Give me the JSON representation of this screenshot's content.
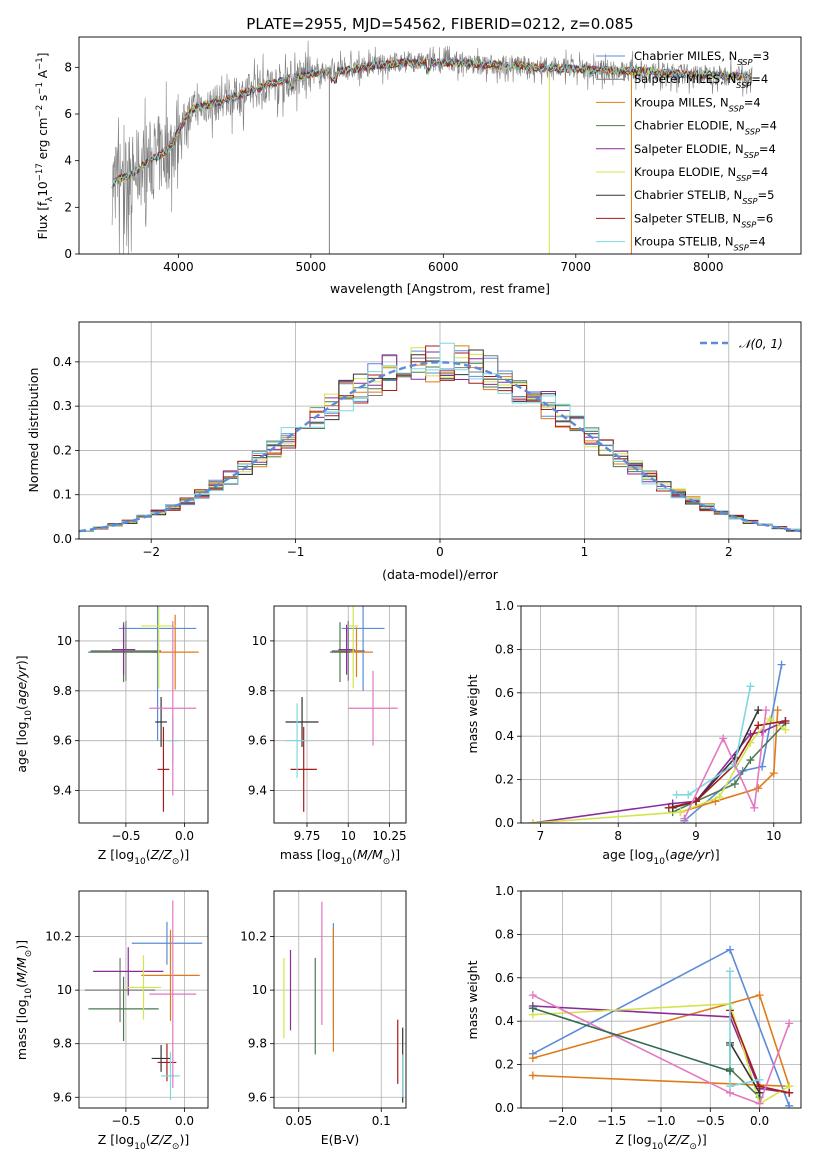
{
  "chart_data": [
    {
      "id": "spectrum",
      "type": "line",
      "title": "PLATE=2955, MJD=54562, FIBERID=0212, z=0.085",
      "xlabel": "wavelength [Angstrom, rest frame]",
      "ylabel": "Flux [f_λ 10^-17 erg cm^-2 s^-1 A^-1]",
      "xlim": [
        3250,
        8700
      ],
      "ylim": [
        0,
        9.3
      ],
      "xticks": [
        4000,
        5000,
        6000,
        7000,
        8000
      ],
      "yticks": [
        0,
        2,
        4,
        6,
        8
      ],
      "legend_position": "top-right",
      "grid": false,
      "series": [
        {
          "name": "Chabrier MILES, N_SSP=3",
          "color": "#5b8bd9"
        },
        {
          "name": "Salpeter MILES, N_SSP=4",
          "color": "#7a7a7a"
        },
        {
          "name": "Kroupa MILES, N_SSP=4",
          "color": "#e07b1a"
        },
        {
          "name": "Chabrier ELODIE, N_SSP=4",
          "color": "#4f7a4f"
        },
        {
          "name": "Salpeter ELODIE, N_SSP=4",
          "color": "#8b2c9b"
        },
        {
          "name": "Kroupa ELODIE, N_SSP=4",
          "color": "#d4e44a"
        },
        {
          "name": "Chabrier STELIB, N_SSP=5",
          "color": "#333333"
        },
        {
          "name": "Salpeter STELIB, N_SSP=6",
          "color": "#a51c1c"
        },
        {
          "name": "Kroupa STELIB, N_SSP=4",
          "color": "#7fd8df"
        }
      ],
      "continuum": {
        "x": [
          3500,
          3550,
          3650,
          3750,
          3850,
          3950,
          4000,
          4100,
          4300,
          4500,
          4700,
          4900,
          5100,
          5300,
          5500,
          5700,
          5900,
          6100,
          6300,
          6500,
          6700,
          6900,
          7100,
          7300,
          7500,
          7700,
          7900,
          8100,
          8300
        ],
        "y": [
          3.0,
          3.2,
          3.4,
          3.9,
          4.2,
          4.6,
          5.3,
          6.2,
          6.5,
          6.9,
          7.3,
          7.6,
          7.8,
          7.9,
          8.1,
          8.2,
          8.2,
          8.2,
          8.1,
          8.1,
          8.0,
          7.95,
          7.9,
          7.85,
          7.85,
          7.75,
          7.7,
          7.65,
          7.6
        ]
      }
    },
    {
      "id": "residuals",
      "type": "line",
      "xlabel": "(data-model)/error",
      "ylabel": "Normed distribution",
      "xlim": [
        -2.5,
        2.5
      ],
      "ylim": [
        0,
        0.49
      ],
      "xticks": [
        -2,
        -1,
        0,
        1,
        2
      ],
      "yticks": [
        0.0,
        0.1,
        0.2,
        0.3,
        0.4
      ],
      "legend": "N(0,1)",
      "legend_label": "𝒩(0, 1)",
      "legend_position": "top-right",
      "grid": true,
      "bin_width": 0.1
    },
    {
      "id": "age-vs-z",
      "type": "scatter",
      "xlabel": "Z [log10(Z/Z⊙)]",
      "ylabel": "age [log10(age/yr)]",
      "xlim": [
        -0.9,
        0.2
      ],
      "ylim": [
        9.27,
        10.14
      ],
      "xticks": [
        -0.5,
        0.0
      ],
      "yticks": [
        9.4,
        9.6,
        9.8,
        10.0
      ],
      "grid": true,
      "points": [
        {
          "x": -0.23,
          "y": 10.05,
          "xerr": 0.33,
          "yerr": 0.45,
          "color": "#5b8bd9"
        },
        {
          "x": -0.5,
          "y": 9.96,
          "xerr": 0.3,
          "yerr": 0.12,
          "color": "#7a7a7a"
        },
        {
          "x": -0.08,
          "y": 9.955,
          "xerr": 0.2,
          "yerr": 0.15,
          "color": "#e07b1a"
        },
        {
          "x": -0.52,
          "y": 9.955,
          "xerr": 0.3,
          "yerr": 0.12,
          "color": "#4f7a4f"
        },
        {
          "x": -0.52,
          "y": 9.965,
          "xerr": 0.1,
          "yerr": 0.1,
          "color": "#8b2c9b"
        },
        {
          "x": -0.22,
          "y": 10.06,
          "xerr": 0.15,
          "yerr": 0.25,
          "color": "#d4e44a"
        },
        {
          "x": -0.2,
          "y": 9.675,
          "xerr": 0.05,
          "yerr": 0.1,
          "color": "#333333"
        },
        {
          "x": -0.18,
          "y": 9.485,
          "xerr": 0.05,
          "yerr": 0.17,
          "color": "#a51c1c"
        },
        {
          "x": -0.1,
          "y": 9.6,
          "xerr": 0.05,
          "yerr": 0.1,
          "color": "#7fd8df"
        },
        {
          "x": -0.1,
          "y": 9.73,
          "xerr": 0.2,
          "yerr": 0.35,
          "color": "#e377c2"
        }
      ]
    },
    {
      "id": "age-vs-mass",
      "type": "scatter",
      "xlabel": "mass [log10(M/M⊙)]",
      "ylabel": "",
      "xlim": [
        9.55,
        10.35
      ],
      "ylim": [
        9.27,
        10.14
      ],
      "xticks": [
        9.75,
        10.0,
        10.25
      ],
      "yticks": [
        9.4,
        9.6,
        9.8,
        10.0
      ],
      "grid": true,
      "points": [
        {
          "x": 10.09,
          "y": 10.05,
          "xerr": 0.13,
          "yerr": 0.25,
          "color": "#5b8bd9"
        },
        {
          "x": 10.0,
          "y": 9.96,
          "xerr": 0.1,
          "yerr": 0.12,
          "color": "#7a7a7a"
        },
        {
          "x": 10.05,
          "y": 9.955,
          "xerr": 0.1,
          "yerr": 0.1,
          "color": "#e07b1a"
        },
        {
          "x": 9.95,
          "y": 9.955,
          "xerr": 0.06,
          "yerr": 0.12,
          "color": "#4f7a4f"
        },
        {
          "x": 9.99,
          "y": 9.965,
          "xerr": 0.05,
          "yerr": 0.1,
          "color": "#8b2c9b"
        },
        {
          "x": 10.03,
          "y": 10.06,
          "xerr": 0.03,
          "yerr": 0.25,
          "color": "#d4e44a"
        },
        {
          "x": 9.72,
          "y": 9.675,
          "xerr": 0.1,
          "yerr": 0.1,
          "color": "#333333"
        },
        {
          "x": 9.73,
          "y": 9.485,
          "xerr": 0.08,
          "yerr": 0.17,
          "color": "#a51c1c"
        },
        {
          "x": 9.69,
          "y": 9.6,
          "xerr": 0.07,
          "yerr": 0.15,
          "color": "#7fd8df"
        },
        {
          "x": 10.15,
          "y": 9.73,
          "xerr": 0.15,
          "yerr": 0.15,
          "color": "#e377c2"
        }
      ]
    },
    {
      "id": "massweight-vs-age",
      "type": "line",
      "xlabel": "age [log10(age/yr)]",
      "ylabel": "mass weight",
      "xlim": [
        6.75,
        10.35
      ],
      "ylim": [
        0,
        1.0
      ],
      "xticks": [
        7,
        8,
        9,
        10
      ],
      "yticks": [
        0.0,
        0.2,
        0.4,
        0.6,
        0.8,
        1.0
      ],
      "grid": true,
      "series": [
        {
          "color": "#5b8bd9",
          "x": [
            8.85,
            9.6,
            9.85,
            10.1
          ],
          "y": [
            0.01,
            0.24,
            0.26,
            0.73
          ]
        },
        {
          "color": "#e07b1a",
          "x": [
            8.8,
            9.25,
            9.8,
            10.0,
            10.05
          ],
          "y": [
            0.05,
            0.1,
            0.16,
            0.23,
            0.52
          ]
        },
        {
          "color": "#4f7a4f",
          "x": [
            8.7,
            9.0,
            9.5,
            9.7,
            10.15
          ],
          "y": [
            0.05,
            0.1,
            0.18,
            0.29,
            0.46
          ]
        },
        {
          "color": "#8b2c9b",
          "x": [
            6.9,
            8.7,
            9.0,
            9.7,
            9.85,
            10.15
          ],
          "y": [
            0.0,
            0.09,
            0.1,
            0.41,
            0.42,
            0.47
          ]
        },
        {
          "color": "#d4e44a",
          "x": [
            6.9,
            8.8,
            9.3,
            9.7,
            9.95,
            10.15
          ],
          "y": [
            0.0,
            0.05,
            0.12,
            0.37,
            0.48,
            0.43
          ]
        },
        {
          "color": "#333333",
          "x": [
            8.7,
            9.0,
            9.5,
            9.8
          ],
          "y": [
            0.07,
            0.1,
            0.3,
            0.52
          ]
        },
        {
          "color": "#a51c1c",
          "x": [
            8.65,
            9.0,
            9.5,
            9.8,
            10.15
          ],
          "y": [
            0.07,
            0.1,
            0.27,
            0.45,
            0.47
          ]
        },
        {
          "color": "#7fd8df",
          "x": [
            8.75,
            8.9,
            9.5,
            9.7
          ],
          "y": [
            0.13,
            0.13,
            0.27,
            0.63
          ]
        },
        {
          "color": "#e377c2",
          "x": [
            8.85,
            9.35,
            9.75,
            9.9
          ],
          "y": [
            0.02,
            0.39,
            0.07,
            0.52
          ]
        }
      ]
    },
    {
      "id": "mass-vs-z",
      "type": "scatter",
      "xlabel": "Z [log10(Z/Z⊙)]",
      "ylabel": "mass [log10(M/M⊙)]",
      "xlim": [
        -0.9,
        0.2
      ],
      "ylim": [
        9.56,
        10.37
      ],
      "xticks": [
        -0.5,
        0.0
      ],
      "yticks": [
        9.6,
        9.8,
        10.0,
        10.2
      ],
      "grid": true,
      "points": [
        {
          "x": -0.15,
          "y": 10.175,
          "xerr": 0.3,
          "yerr": 0.08,
          "color": "#5b8bd9"
        },
        {
          "x": -0.55,
          "y": 10.0,
          "xerr": 0.3,
          "yerr": 0.12,
          "color": "#7a7a7a"
        },
        {
          "x": -0.12,
          "y": 10.055,
          "xerr": 0.25,
          "yerr": 0.17,
          "color": "#e07b1a"
        },
        {
          "x": -0.52,
          "y": 9.93,
          "xerr": 0.3,
          "yerr": 0.12,
          "color": "#4f7a4f"
        },
        {
          "x": -0.48,
          "y": 10.07,
          "xerr": 0.3,
          "yerr": 0.09,
          "color": "#8b2c9b"
        },
        {
          "x": -0.35,
          "y": 10.01,
          "xerr": 0.15,
          "yerr": 0.12,
          "color": "#d4e44a"
        },
        {
          "x": -0.2,
          "y": 9.745,
          "xerr": 0.08,
          "yerr": 0.05,
          "color": "#333333"
        },
        {
          "x": -0.15,
          "y": 9.73,
          "xerr": 0.08,
          "yerr": 0.07,
          "color": "#a51c1c"
        },
        {
          "x": -0.12,
          "y": 9.68,
          "xerr": 0.08,
          "yerr": 0.09,
          "color": "#7fd8df"
        },
        {
          "x": -0.1,
          "y": 9.985,
          "xerr": 0.2,
          "yerr": 0.35,
          "color": "#e377c2"
        }
      ]
    },
    {
      "id": "mass-vs-ebv",
      "type": "scatter",
      "xlabel": "E(B-V)",
      "ylabel": "",
      "xlim": [
        0.035,
        0.115
      ],
      "ylim": [
        9.56,
        10.37
      ],
      "xticks": [
        0.05,
        0.1
      ],
      "yticks": [
        9.6,
        9.8,
        10.0,
        10.2
      ],
      "grid": true,
      "points": [
        {
          "x": 0.071,
          "y": 10.05,
          "yerr": 0.2,
          "color": "#5b8bd9"
        },
        {
          "x": 0.071,
          "y": 10.0,
          "yerr": 0.23,
          "color": "#e07b1a"
        },
        {
          "x": 0.06,
          "y": 9.94,
          "yerr": 0.18,
          "color": "#4f7a4f"
        },
        {
          "x": 0.045,
          "y": 10.0,
          "yerr": 0.15,
          "color": "#8b2c9b"
        },
        {
          "x": 0.041,
          "y": 9.97,
          "yerr": 0.15,
          "color": "#d4e44a"
        },
        {
          "x": 0.113,
          "y": 9.72,
          "yerr": 0.14,
          "color": "#333333"
        },
        {
          "x": 0.11,
          "y": 9.77,
          "yerr": 0.12,
          "color": "#a51c1c"
        },
        {
          "x": 0.113,
          "y": 9.68,
          "yerr": 0.08,
          "color": "#7fd8df"
        },
        {
          "x": 0.064,
          "y": 10.1,
          "yerr": 0.23,
          "color": "#e377c2"
        }
      ]
    },
    {
      "id": "massweight-vs-z",
      "type": "line",
      "xlabel": "Z [log10(Z/Z⊙)]",
      "ylabel": "mass weight",
      "xlim": [
        -2.42,
        0.42
      ],
      "ylim": [
        0,
        1.0
      ],
      "xticks": [
        -2.0,
        -1.5,
        -1.0,
        -0.5,
        0.0
      ],
      "yticks": [
        0.0,
        0.2,
        0.4,
        0.6,
        0.8,
        1.0
      ],
      "grid": true,
      "series": [
        {
          "color": "#5b8bd9",
          "x": [
            -2.3,
            -0.3,
            0.3
          ],
          "y": [
            0.25,
            0.73,
            0.01
          ]
        },
        {
          "color": "#e07b1a",
          "x": [
            -2.3,
            0.0,
            0.3,
            -2.3
          ],
          "y": [
            0.23,
            0.52,
            0.1,
            0.15
          ]
        },
        {
          "color": "#4f7a4f",
          "x": [
            -0.3,
            -0.3,
            0.0,
            0.0
          ],
          "y": [
            0.29,
            0.18,
            0.05,
            0.07
          ]
        },
        {
          "color": "#8b2c9b",
          "x": [
            -2.3,
            -0.3,
            0.0,
            0.3
          ],
          "y": [
            0.47,
            0.42,
            0.09,
            0.07
          ]
        },
        {
          "color": "#d4e44a",
          "x": [
            -2.3,
            -0.3,
            0.0,
            0.3
          ],
          "y": [
            0.43,
            0.48,
            0.02,
            0.1
          ]
        },
        {
          "color": "#333333",
          "x": [
            -0.3,
            0.0
          ],
          "y": [
            0.3,
            0.07
          ]
        },
        {
          "color": "#a51c1c",
          "x": [
            -0.3,
            0.0,
            0.3
          ],
          "y": [
            0.45,
            0.1,
            0.07
          ]
        },
        {
          "color": "#7fd8df",
          "x": [
            -0.3,
            -0.3,
            0.0
          ],
          "y": [
            0.63,
            0.1,
            0.13
          ]
        },
        {
          "color": "#e377c2",
          "x": [
            -2.3,
            -0.3,
            0.0,
            0.3
          ],
          "y": [
            0.52,
            0.07,
            0.02,
            0.39
          ]
        },
        {
          "color": "#2f6b4f",
          "x": [
            -2.3,
            -0.3
          ],
          "y": [
            0.46,
            0.17
          ]
        }
      ]
    }
  ]
}
